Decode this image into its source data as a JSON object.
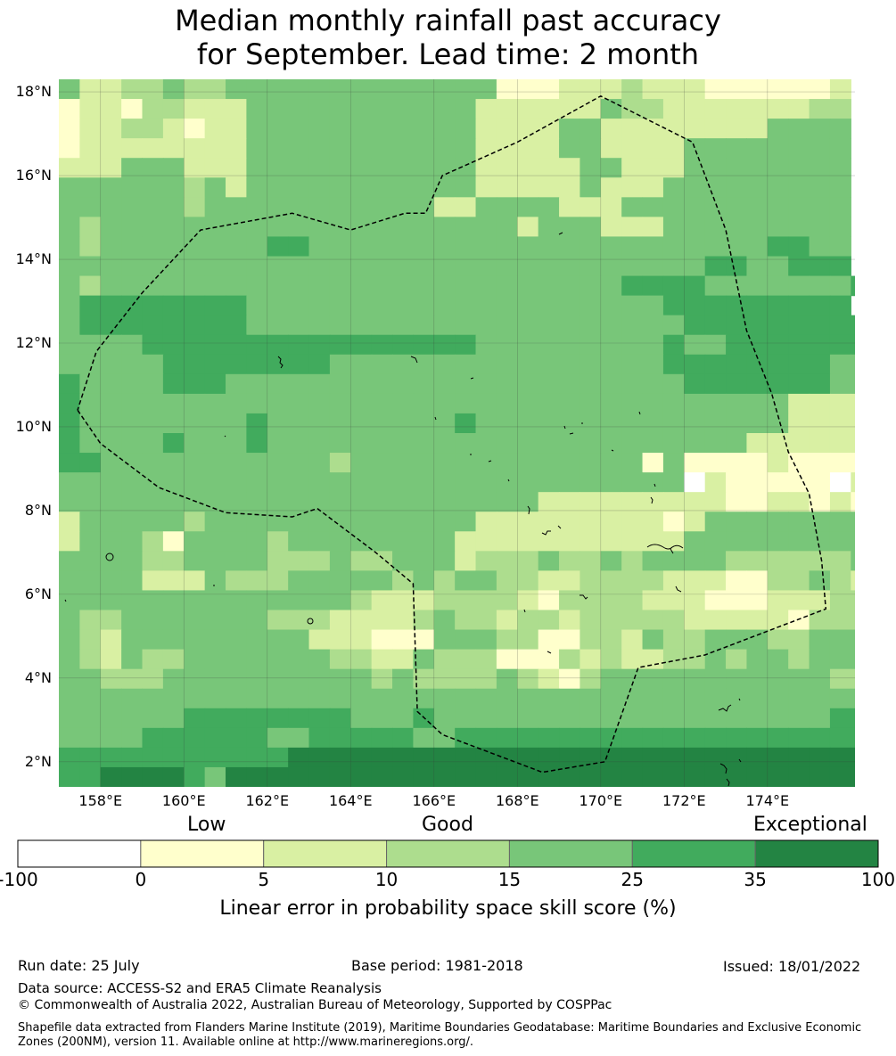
{
  "title": {
    "line1": "Median monthly rainfall past accuracy",
    "line2": "for September. Lead time: 2 month"
  },
  "map": {
    "lat_range": [
      1.4,
      18.3
    ],
    "lon_range": [
      157.0,
      176.1
    ],
    "lat_ticks": [
      "18°N",
      "16°N",
      "14°N",
      "12°N",
      "10°N",
      "8°N",
      "6°N",
      "4°N",
      "2°N"
    ],
    "lat_tick_values": [
      18,
      16,
      14,
      12,
      10,
      8,
      6,
      4,
      2
    ],
    "lon_ticks": [
      "158°E",
      "160°E",
      "162°E",
      "164°E",
      "166°E",
      "168°E",
      "170°E",
      "172°E",
      "174°E"
    ],
    "lon_tick_values": [
      158,
      160,
      162,
      164,
      166,
      168,
      170,
      172,
      174
    ],
    "grid_cells": {
      "cell_size_deg": 0.833,
      "legend": {
        "W": "< 0",
        "Y": "0 – 5",
        "L": "5 – 10",
        "G": "10 – 15",
        "M": "15 – 25",
        "D": "25 – 35",
        "E": "35 – 100"
      },
      "rows": [
        "MLLGGMGGMMMMMMMMMMMMMYYYLLLGLLLYYYYYYL",
        "YLLYGGLLLMMMMMMMMMMMLLLLLLMGGLLLLLLLGG",
        "YLLGGLYLLMMMMMMMMMMMLLLLMMLLLLLLLLMMMM",
        "YLLLLLLLLMMMMMMMMMMMLLLLMMLLLLMMMMMMMM",
        "LLLMMMLLLMMMMMMMMMMMLLLLLMMLLLMMMMMMMM",
        "MMMMMMGMLMMMMMMMMMMMLLLLLMLLLMMMMMMMMM",
        "MMMMMMGMMMMMMMMMMMLLMMMMLLLMMMMMMMMMMM",
        "MGMMMMMMMMMMMMMMMMMMMMLMMMLLLMMMMMMMMM",
        "MGMMMMMMMMDDMMMMMMMMMMMMMMMMMMMMMMDDMM",
        "MMMMMMMMMMMMMMMMMMMMMMMMMMMMMMMDDMMDDD",
        "MGMMMMMMMMMMMMMMMMMMMMMMMMMDDDDMMMMMMMD",
        "MDDDDDDDDMMMMMMMMMMMMMMMMMMMMDDDDDDDDD",
        "MDDDDDDDDMMMMMMMMMMMMMMMMMMMMMDDDDDDDDD",
        "MMMMDDDDDDDDDDDDDDDDMMMMMMMMMDMMDDDDDDDD",
        "MMMMMDDDDDDDDMMMMMMMMMMMMMMMMDDDDDDDDMMDD",
        "DMMMMDDDMMMMMMMMMMMMMMMMMMMMMMDDDDDDDMMM",
        "DMMMMMMMMMMMMMMMMMMMMMMMMMMMMMMMMMMLLLLL",
        "DMMMMMMMMDMMMMMMMMMDMMMMMMMMMMMMMMMLLLLGG",
        "DMMMMDMMMDMMMMMMMMMMMMMMMMMMMMMMMLLLLLLYL",
        "DDMMMMMMMMMMMGMMMMMMMMMMMMMMYMYYYYLYYYYWY",
        "MMMMMMMMMMMMMMMMMMMMMMMMMMMMMMWLYYYYYWLWY",
        "MMMMMMMMMMMMMMMMMMMMMMMLLLLLLLLLYYLLYLYYY",
        "LMMMMMGMMMMMMMMMMMMMLLLLLLLLLYLMMMMMMMMLM",
        "LMMMGYMMMMGMMMMMMMMLLLLLLLLLLLMMMMMMMMMLL",
        "MMMMGGMMMMGGGMGGMMMLGGGMGGMGMMMMGGGGGGMLM",
        "MMMMLLLMGGGMMMMMGMGMMGGLLGGGGLLLYYGGMGLLG",
        "MMMMMMMMMMMMMMGLLLGGGGLYGGGGLLLYYYLLLGGGG",
        "MGGMMMMMMMGGGLLLLGMGGLGGLGGGGGLLLLLYGGGGL",
        "MGLMMMMMMMMMLLLYYYMMMGGYYGGLMGGMMMGGMMMM",
        "MGLMGGMMMMMMMGGLLMGGGYYYGLGLLGGMGMMGMMMM",
        "MMGGGMMMMMMMMMMGMGGGGMGLYGMMMMMMMMMMMGGG",
        "MMMMMMMMMMMMMMMMMMMMMMMMMMMMMMMMMMMMMMMMM",
        "MMMMMMDDDDDDDDMMMDMMMMMMMMMMMMMMMMMMMDDDD",
        "MMMMDDDDDDMMDDDDDMMDDDDDDDDDDDDDDDDDDDDDD",
        "DDDDDDDDDDDEEEEEEEEEEEEEEEEEEEEEEEEEEEEEE",
        "DDEEEEDMEEEEEEEEEEEEEEEEEEEEEEEEEEEEEEEEE"
      ]
    },
    "boundary": {
      "style": "dashed",
      "path_lonlat": [
        [
          157.45,
          10.4
        ],
        [
          158.0,
          9.6
        ],
        [
          159.4,
          8.55
        ],
        [
          161.0,
          7.95
        ],
        [
          162.6,
          7.85
        ],
        [
          163.2,
          8.05
        ],
        [
          164.6,
          7.0
        ],
        [
          165.5,
          6.25
        ],
        [
          165.6,
          3.2
        ],
        [
          166.2,
          2.65
        ],
        [
          168.6,
          1.75
        ],
        [
          170.1,
          2.0
        ],
        [
          170.9,
          4.25
        ],
        [
          172.5,
          4.55
        ],
        [
          175.4,
          5.65
        ],
        [
          175.3,
          6.8
        ],
        [
          175.0,
          8.4
        ],
        [
          174.5,
          9.4
        ],
        [
          174.1,
          10.8
        ],
        [
          173.5,
          12.3
        ],
        [
          173.0,
          14.7
        ],
        [
          172.2,
          16.8
        ],
        [
          170.0,
          17.9
        ],
        [
          168.0,
          16.8
        ],
        [
          166.2,
          16.0
        ],
        [
          165.8,
          15.1
        ],
        [
          165.3,
          15.1
        ],
        [
          164.0,
          14.7
        ],
        [
          162.6,
          15.1
        ],
        [
          160.4,
          14.7
        ],
        [
          159.0,
          13.2
        ],
        [
          157.9,
          11.8
        ],
        [
          157.45,
          10.4
        ]
      ]
    }
  },
  "colorbar": {
    "categories": {
      "low": "Low",
      "good": "Good",
      "exceptional": "Exceptional"
    },
    "bins": [
      {
        "from": -100,
        "to": 0,
        "color": "#ffffff"
      },
      {
        "from": 0,
        "to": 5,
        "color": "#ffffcc"
      },
      {
        "from": 5,
        "to": 10,
        "color": "#d9f0a3"
      },
      {
        "from": 10,
        "to": 15,
        "color": "#addd8e"
      },
      {
        "from": 15,
        "to": 25,
        "color": "#78c679"
      },
      {
        "from": 25,
        "to": 35,
        "color": "#41ab5d"
      },
      {
        "from": 35,
        "to": 100,
        "color": "#238443"
      }
    ],
    "tick_labels": [
      "-100",
      "0",
      "5",
      "10",
      "15",
      "25",
      "35",
      "100"
    ],
    "label": "Linear error in probability space skill score (%)"
  },
  "footer": {
    "run_date": "Run date: 25 July",
    "base_period": "Base period: 1981-2018",
    "issued": "Issued: 18/01/2022",
    "data_source": "Data source: ACCESS-S2 and ERA5 Climate Reanalysis",
    "copyright": "© Commonwealth of Australia 2022, Australian Bureau of Meteorology, Supported by COSPPac",
    "shapefile_note": "Shapefile data extracted from Flanders Marine Institute (2019), Maritime Boundaries Geodatabase: Maritime Boundaries and Exclusive Economic Zones (200NM), version 11. Available online at http://www.marineregions.org/."
  }
}
